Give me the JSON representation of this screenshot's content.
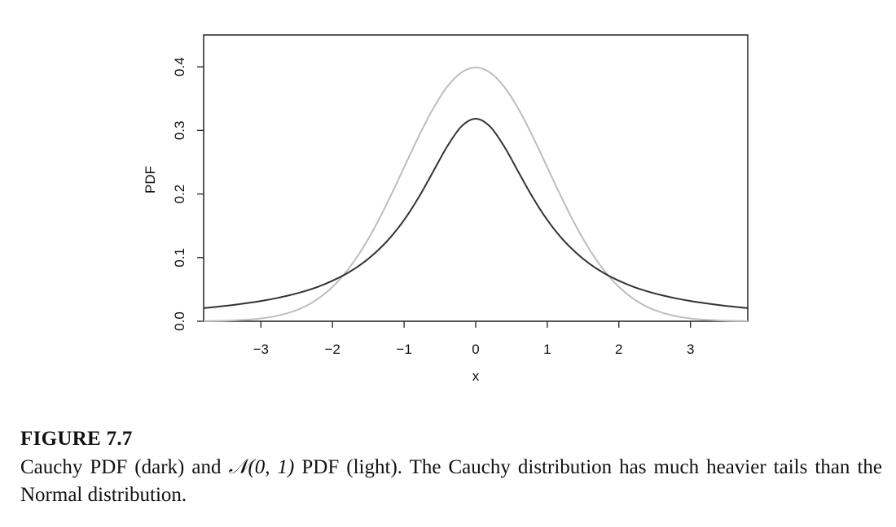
{
  "chart_data": {
    "type": "line",
    "xlabel": "x",
    "ylabel": "PDF",
    "xlim": [
      -3.8,
      3.8
    ],
    "ylim": [
      0.0,
      0.45
    ],
    "x_ticks": [
      -3,
      -2,
      -1,
      0,
      1,
      2,
      3
    ],
    "x_tick_labels": [
      "−3",
      "−2",
      "−1",
      "0",
      "1",
      "2",
      "3"
    ],
    "y_ticks": [
      0.0,
      0.1,
      0.2,
      0.3,
      0.4
    ],
    "y_tick_labels": [
      "0.0",
      "0.1",
      "0.2",
      "0.3",
      "0.4"
    ],
    "series": [
      {
        "name": "N(0,1) PDF (light)",
        "color": "#bdbdbd",
        "x": [
          -3.8,
          -3.6,
          -3.4,
          -3.2,
          -3.0,
          -2.8,
          -2.6,
          -2.4,
          -2.2,
          -2.0,
          -1.8,
          -1.6,
          -1.4,
          -1.2,
          -1.0,
          -0.8,
          -0.6,
          -0.4,
          -0.2,
          0.0,
          0.2,
          0.4,
          0.6,
          0.8,
          1.0,
          1.2,
          1.4,
          1.6,
          1.8,
          2.0,
          2.2,
          2.4,
          2.6,
          2.8,
          3.0,
          3.2,
          3.4,
          3.6,
          3.8
        ],
        "y": [
          0.0003,
          0.0006,
          0.0012,
          0.0024,
          0.0044,
          0.0079,
          0.0136,
          0.0224,
          0.0355,
          0.054,
          0.079,
          0.1109,
          0.1497,
          0.1942,
          0.242,
          0.2897,
          0.3332,
          0.3683,
          0.391,
          0.3989,
          0.391,
          0.3683,
          0.3332,
          0.2897,
          0.242,
          0.1942,
          0.1497,
          0.1109,
          0.079,
          0.054,
          0.0355,
          0.0224,
          0.0136,
          0.0079,
          0.0044,
          0.0024,
          0.0012,
          0.0006,
          0.0003
        ]
      },
      {
        "name": "Cauchy PDF (dark)",
        "color": "#333333",
        "x": [
          -3.8,
          -3.6,
          -3.4,
          -3.2,
          -3.0,
          -2.8,
          -2.6,
          -2.4,
          -2.2,
          -2.0,
          -1.8,
          -1.6,
          -1.4,
          -1.2,
          -1.0,
          -0.8,
          -0.6,
          -0.4,
          -0.2,
          0.0,
          0.2,
          0.4,
          0.6,
          0.8,
          1.0,
          1.2,
          1.4,
          1.6,
          1.8,
          2.0,
          2.2,
          2.4,
          2.6,
          2.8,
          3.0,
          3.2,
          3.4,
          3.6,
          3.8
        ],
        "y": [
          0.0206,
          0.0229,
          0.0254,
          0.0284,
          0.0318,
          0.0359,
          0.0409,
          0.0469,
          0.0543,
          0.0637,
          0.0751,
          0.0895,
          0.1079,
          0.1306,
          0.1592,
          0.1941,
          0.234,
          0.2744,
          0.3061,
          0.3183,
          0.3061,
          0.2744,
          0.234,
          0.1941,
          0.1592,
          0.1306,
          0.1079,
          0.0895,
          0.0751,
          0.0637,
          0.0543,
          0.0469,
          0.0409,
          0.0359,
          0.0318,
          0.0284,
          0.0254,
          0.0229,
          0.0206
        ]
      }
    ]
  },
  "caption": {
    "figure_label": "FIGURE 7.7",
    "text_part1": "Cauchy PDF (dark) and ",
    "normal_symbol": "𝒩(0, 1)",
    "text_part2": " PDF (light). The Cauchy distribution has much heavier tails than the Normal distribution."
  }
}
